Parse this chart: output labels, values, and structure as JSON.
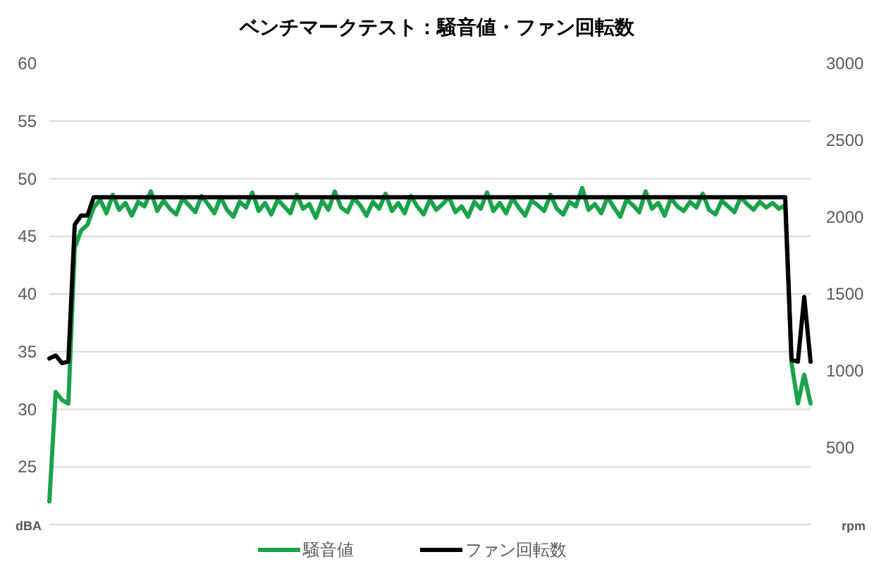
{
  "chart_data": {
    "type": "line",
    "title": "ベンチマークテスト：騒音値・ファン回転数",
    "ylabel": "dBA",
    "y2label": "rpm",
    "categories": [
      null,
      null,
      null,
      null,
      null,
      null,
      null,
      null,
      null,
      null,
      null,
      null,
      null,
      null,
      null,
      null,
      null,
      null,
      null,
      null,
      null,
      null,
      null,
      null,
      null,
      null,
      null,
      null,
      null,
      null,
      null,
      null,
      null,
      null,
      null,
      null,
      null,
      null,
      null,
      null,
      null,
      null,
      null,
      null,
      null,
      null,
      null,
      null,
      null,
      null,
      null,
      null,
      null,
      null,
      null,
      null,
      null,
      null,
      null,
      null,
      null,
      null,
      null,
      null,
      null,
      null,
      null,
      null,
      null,
      null,
      null,
      null,
      null,
      null,
      null,
      null,
      null,
      null,
      null,
      null,
      null,
      null,
      null,
      null,
      null,
      null,
      null,
      null,
      null,
      null,
      null,
      null,
      null,
      null,
      null,
      null,
      null,
      null,
      null,
      null,
      null,
      null,
      null,
      null,
      null,
      null,
      null,
      null,
      null,
      null,
      null,
      null,
      null,
      null,
      null,
      null,
      null,
      null,
      null,
      null,
      null
    ],
    "ylim": [
      20,
      60
    ],
    "yticks": [
      25,
      30,
      35,
      40,
      45,
      50,
      55,
      60
    ],
    "y2lim": [
      0,
      3000
    ],
    "y2ticks": [
      500,
      1000,
      1500,
      2000,
      2500,
      3000
    ],
    "grid": "y",
    "legend": "bottom",
    "series": [
      {
        "name": "騒音値",
        "color": "#1aa34a",
        "values": [
          22,
          31.5,
          30.8,
          30.5,
          44,
          45.5,
          46,
          47.5,
          48.2,
          47.0,
          48.6,
          47.3,
          47.9,
          46.8,
          48.0,
          47.6,
          48.9,
          47.2,
          48.1,
          47.4,
          46.9,
          48.3,
          47.7,
          47.1,
          48.5,
          47.8,
          47.0,
          48.4,
          47.3,
          46.7,
          48.0,
          47.5,
          48.8,
          47.2,
          47.9,
          46.9,
          48.2,
          47.6,
          47.0,
          48.6,
          47.4,
          47.8,
          46.6,
          48.1,
          47.3,
          48.9,
          47.5,
          47.1,
          48.3,
          47.7,
          46.8,
          48.0,
          47.4,
          48.7,
          47.2,
          47.9,
          47.0,
          48.5,
          47.6,
          46.9,
          48.2,
          47.3,
          47.8,
          48.4,
          47.1,
          47.6,
          46.7,
          48.0,
          47.4,
          48.8,
          47.2,
          47.9,
          47.0,
          48.3,
          47.5,
          46.8,
          48.1,
          47.7,
          47.2,
          48.6,
          47.4,
          46.9,
          48.0,
          47.6,
          49.2,
          47.3,
          47.8,
          47.0,
          48.4,
          47.5,
          46.7,
          48.2,
          47.7,
          47.1,
          48.9,
          47.4,
          47.9,
          46.8,
          48.3,
          47.6,
          47.2,
          48.0,
          47.5,
          48.7,
          47.3,
          46.9,
          48.1,
          47.6,
          47.1,
          48.4,
          47.8,
          47.3,
          48.0,
          47.5,
          47.9,
          47.4,
          47.7,
          34,
          30.5,
          33,
          30.5
        ]
      },
      {
        "name": "ファン回転数",
        "color": "#000000",
        "axis": "y2",
        "values": [
          1080,
          1100,
          1050,
          1060,
          1950,
          2010,
          2010,
          2130,
          2130,
          2130,
          2130,
          2130,
          2130,
          2130,
          2130,
          2130,
          2130,
          2130,
          2130,
          2130,
          2130,
          2130,
          2130,
          2130,
          2130,
          2130,
          2130,
          2130,
          2130,
          2130,
          2130,
          2130,
          2130,
          2130,
          2130,
          2130,
          2130,
          2130,
          2130,
          2130,
          2130,
          2130,
          2130,
          2130,
          2130,
          2130,
          2130,
          2130,
          2130,
          2130,
          2130,
          2130,
          2130,
          2130,
          2130,
          2130,
          2130,
          2130,
          2130,
          2130,
          2130,
          2130,
          2130,
          2130,
          2130,
          2130,
          2130,
          2130,
          2130,
          2130,
          2130,
          2130,
          2130,
          2130,
          2130,
          2130,
          2130,
          2130,
          2130,
          2130,
          2130,
          2130,
          2130,
          2130,
          2130,
          2130,
          2130,
          2130,
          2130,
          2130,
          2130,
          2130,
          2130,
          2130,
          2130,
          2130,
          2130,
          2130,
          2130,
          2130,
          2130,
          2130,
          2130,
          2130,
          2130,
          2130,
          2130,
          2130,
          2130,
          2130,
          2130,
          2130,
          2130,
          2130,
          2130,
          2130,
          2130,
          1070,
          1060,
          1480,
          1060
        ]
      }
    ]
  }
}
